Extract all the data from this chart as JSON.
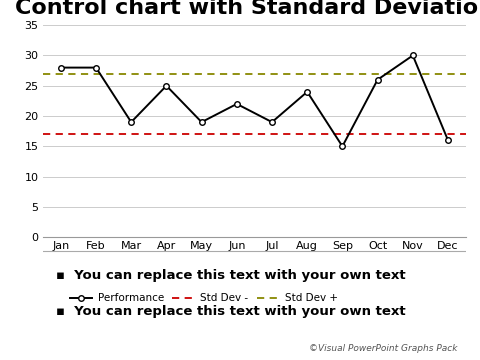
{
  "title": "Control chart with Standard Deviation",
  "months": [
    "Jan",
    "Feb",
    "Mar",
    "Apr",
    "May",
    "Jun",
    "Jul",
    "Aug",
    "Sep",
    "Oct",
    "Nov",
    "Dec"
  ],
  "performance": [
    28,
    28,
    19,
    25,
    19,
    22,
    19,
    24,
    15,
    26,
    30,
    16
  ],
  "std_dev_minus": 17,
  "std_dev_plus": 27,
  "ylim": [
    0,
    35
  ],
  "yticks": [
    0,
    5,
    10,
    15,
    20,
    25,
    30,
    35
  ],
  "line_color": "#000000",
  "std_minus_color": "#cc0000",
  "std_plus_color": "#888800",
  "background_color": "#ffffff",
  "legend_performance": "Performance",
  "legend_std_minus": "Std Dev -",
  "legend_std_plus": "Std Dev +",
  "bullet_text1": "You can replace this text with your own text",
  "bullet_text2": "You can replace this text with your own text",
  "watermark": "©Visual PowerPoint Graphs Pack",
  "title_fontsize": 16,
  "axis_fontsize": 8,
  "legend_fontsize": 7.5,
  "bullet_fontsize": 9.5
}
